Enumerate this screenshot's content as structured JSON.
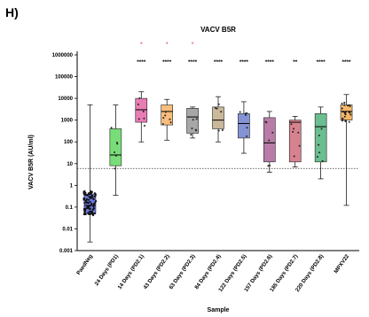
{
  "panel_label": "H)",
  "chart_data": {
    "type": "box",
    "title": "VACV B5R",
    "xlabel": "Sample",
    "ylabel": "VACV B5R (AU/ml)",
    "y_scale": "log",
    "ylim": [
      0.001,
      1000000
    ],
    "y_ticks": [
      {
        "value": 0.001,
        "label": "0.001"
      },
      {
        "value": 0.01,
        "label": "0.01"
      },
      {
        "value": 0.1,
        "label": "0.1"
      },
      {
        "value": 1,
        "label": "1"
      },
      {
        "value": 10,
        "label": "10"
      },
      {
        "value": 100,
        "label": "100"
      },
      {
        "value": 1000,
        "label": "1000"
      },
      {
        "value": 10000,
        "label": "10000"
      },
      {
        "value": 100000,
        "label": "100000"
      },
      {
        "value": 1000000,
        "label": "1000000"
      }
    ],
    "cutoff_line": 6,
    "categories": [
      "PaedNeg",
      "24 Days (PD1)",
      "14 Days (PD2.1)",
      "43 Days (PD2.2)",
      "63 Days (PD2.3)",
      "84 Days (PD2.4)",
      "122 Days (PD2.5)",
      "157 Days (PD2.6)",
      "185 Days (PD2.7)",
      "220 Days (PD2.8)",
      "MPXV22"
    ],
    "colors": [
      "#3b4fd8",
      "#4bd24b",
      "#e0529b",
      "#f5a752",
      "#8a8a8a",
      "#b8a07a",
      "#5b6fc4",
      "#a0508a",
      "#c95a6a",
      "#3aa86a",
      "#f2a03a"
    ],
    "boxes": [
      {
        "min": 0.0025,
        "q1": 0.05,
        "median": 0.12,
        "q3": 0.4,
        "max": 5000
      },
      {
        "min": 0.35,
        "q1": 8,
        "median": 25,
        "q3": 400,
        "max": 5000
      },
      {
        "min": 100,
        "q1": 800,
        "median": 3000,
        "q3": 10000,
        "max": 20000
      },
      {
        "min": 120,
        "q1": 600,
        "median": 2500,
        "q3": 5000,
        "max": 9000
      },
      {
        "min": 150,
        "q1": 250,
        "median": 1400,
        "q3": 3500,
        "max": 4000
      },
      {
        "min": 100,
        "q1": 400,
        "median": 1000,
        "q3": 4000,
        "max": 12000
      },
      {
        "min": 30,
        "q1": 150,
        "median": 700,
        "q3": 2000,
        "max": 7000
      },
      {
        "min": 4,
        "q1": 12,
        "median": 90,
        "q3": 1300,
        "max": 2500
      },
      {
        "min": 7,
        "q1": 12,
        "median": 800,
        "q3": 1000,
        "max": 1500
      },
      {
        "min": 2,
        "q1": 12,
        "median": 500,
        "q3": 2000,
        "max": 4000
      },
      {
        "min": 0.12,
        "q1": 1000,
        "median": 2500,
        "q3": 5000,
        "max": 15000
      }
    ],
    "significance_stars": [
      "",
      "",
      "****",
      "****",
      "****",
      "****",
      "****",
      "****",
      "**",
      "****",
      "****"
    ],
    "red_asterisks": [
      "",
      "",
      "*",
      "*",
      "*",
      "",
      "",
      "",
      "",
      "",
      ""
    ]
  }
}
